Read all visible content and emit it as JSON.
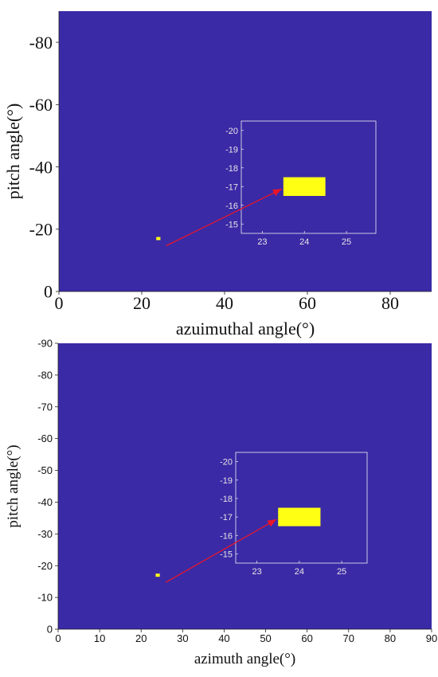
{
  "colors": {
    "background_field": "#3a2aa6",
    "target": "#ffff14",
    "arrow": "#e8152a",
    "inset_frame": "#f0f0f0",
    "axis_text": "#111111",
    "inset_text": "#e6e6e6"
  },
  "chart_data": [
    {
      "type": "heatmap",
      "title": "",
      "xlabel": "azuimuthal angle(°)",
      "ylabel": "pitch angle(°)",
      "xlim": [
        0,
        90
      ],
      "ylim": [
        0,
        -90
      ],
      "y_axis_reversed": true,
      "xticks": [
        0,
        20,
        40,
        60,
        80
      ],
      "yticks": [
        0,
        -20,
        -40,
        -60,
        -80
      ],
      "xtick_labels": [
        "0",
        "20",
        "40",
        "60",
        "80"
      ],
      "ytick_labels": [
        "0",
        "-20",
        "-40",
        "-60",
        "-80"
      ],
      "target": {
        "x": [
          23.5,
          24.5
        ],
        "y": [
          -16.5,
          -17.5
        ]
      },
      "arrow": {
        "from": [
          24,
          -17
        ],
        "to_inset": true
      },
      "inset": {
        "xlim": [
          22.5,
          25.7
        ],
        "ylim": [
          -14.5,
          -20.5
        ],
        "xticks": [
          23,
          24,
          25
        ],
        "yticks": [
          -20,
          -19,
          -18,
          -17,
          -16,
          -15
        ],
        "xtick_labels": [
          "23",
          "24",
          "25"
        ],
        "ytick_labels": [
          "-20",
          "-19",
          "-18",
          "-17",
          "-16",
          "-15"
        ],
        "target": {
          "x": [
            23.5,
            24.5
          ],
          "y": [
            -16.5,
            -17.5
          ]
        }
      },
      "grid": false,
      "legend": "none"
    },
    {
      "type": "heatmap",
      "title": "",
      "xlabel": "azimuth angle(°)",
      "ylabel": "pitch angle(°)",
      "xlim": [
        0,
        90
      ],
      "ylim": [
        0,
        -90
      ],
      "y_axis_reversed": true,
      "xticks": [
        0,
        10,
        20,
        30,
        40,
        50,
        60,
        70,
        80,
        90
      ],
      "yticks": [
        0,
        -10,
        -20,
        -30,
        -40,
        -50,
        -60,
        -70,
        -80,
        -90
      ],
      "xtick_labels": [
        "0",
        "10",
        "20",
        "30",
        "40",
        "50",
        "60",
        "70",
        "80",
        "90"
      ],
      "ytick_labels": [
        "0",
        "-10",
        "-20",
        "-30",
        "-40",
        "-50",
        "-60",
        "-70",
        "-80",
        "-90"
      ],
      "target": {
        "x": [
          23.5,
          24.5
        ],
        "y": [
          -16.5,
          -17.5
        ]
      },
      "arrow": {
        "from": [
          24,
          -17
        ],
        "to_inset": true
      },
      "inset": {
        "xlim": [
          22.5,
          25.6
        ],
        "ylim": [
          -14.5,
          -20.5
        ],
        "xticks": [
          23,
          24,
          25
        ],
        "yticks": [
          -20,
          -19,
          -18,
          -17,
          -16,
          -15
        ],
        "xtick_labels": [
          "23",
          "24",
          "25"
        ],
        "ytick_labels": [
          "-20",
          "-19",
          "-18",
          "-17",
          "-16",
          "-15"
        ],
        "target": {
          "x": [
            23.5,
            24.5
          ],
          "y": [
            -16.5,
            -17.5
          ]
        }
      },
      "grid": false,
      "legend": "none"
    }
  ]
}
